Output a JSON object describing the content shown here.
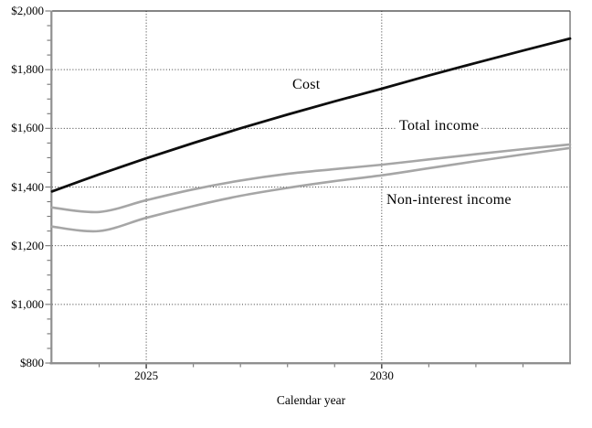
{
  "chart_data": {
    "type": "line",
    "title": "",
    "xlabel": "Calendar year",
    "ylabel": "",
    "xlim": [
      2023,
      2034
    ],
    "ylim": [
      800,
      2000
    ],
    "grid": "dotted horizontal lines every $200; dotted vertical lines at 2025 and 2030",
    "legend_position": "inline-labels",
    "x": [
      2023,
      2024,
      2025,
      2026,
      2027,
      2028,
      2029,
      2030,
      2031,
      2032,
      2033,
      2034
    ],
    "x_major_ticks": [
      {
        "value": 2025,
        "label": "2025"
      },
      {
        "value": 2030,
        "label": "2030"
      }
    ],
    "x_minor_tick_step": 1,
    "y_ticks": [
      {
        "value": 2000,
        "label": "$2,000"
      },
      {
        "value": 1800,
        "label": "$1,800"
      },
      {
        "value": 1600,
        "label": "$1,600"
      },
      {
        "value": 1400,
        "label": "$1,400"
      },
      {
        "value": 1200,
        "label": "$1,200"
      },
      {
        "value": 1000,
        "label": "$1,000"
      },
      {
        "value": 800,
        "label": "$800"
      }
    ],
    "y_minor_tick_step": 50,
    "series": [
      {
        "name": "Cost",
        "color": "#0d0d0d",
        "line_width": 2.8,
        "values": [
          1385,
          1443,
          1498,
          1550,
          1600,
          1647,
          1692,
          1735,
          1780,
          1823,
          1865,
          1906
        ]
      },
      {
        "name": "Total income",
        "color": "#a6a6a6",
        "line_width": 2.6,
        "values": [
          1330,
          1315,
          1355,
          1392,
          1422,
          1445,
          1461,
          1476,
          1494,
          1512,
          1529,
          1545
        ]
      },
      {
        "name": "Non-interest income",
        "color": "#a6a6a6",
        "line_width": 2.6,
        "values": [
          1265,
          1250,
          1295,
          1335,
          1370,
          1397,
          1420,
          1440,
          1464,
          1488,
          1511,
          1533
        ]
      }
    ],
    "axis_color": "#8f8f8f",
    "border_color": "#3c3c3c",
    "gridline_color": "#3a3a3a",
    "tick_color": "#757575"
  }
}
